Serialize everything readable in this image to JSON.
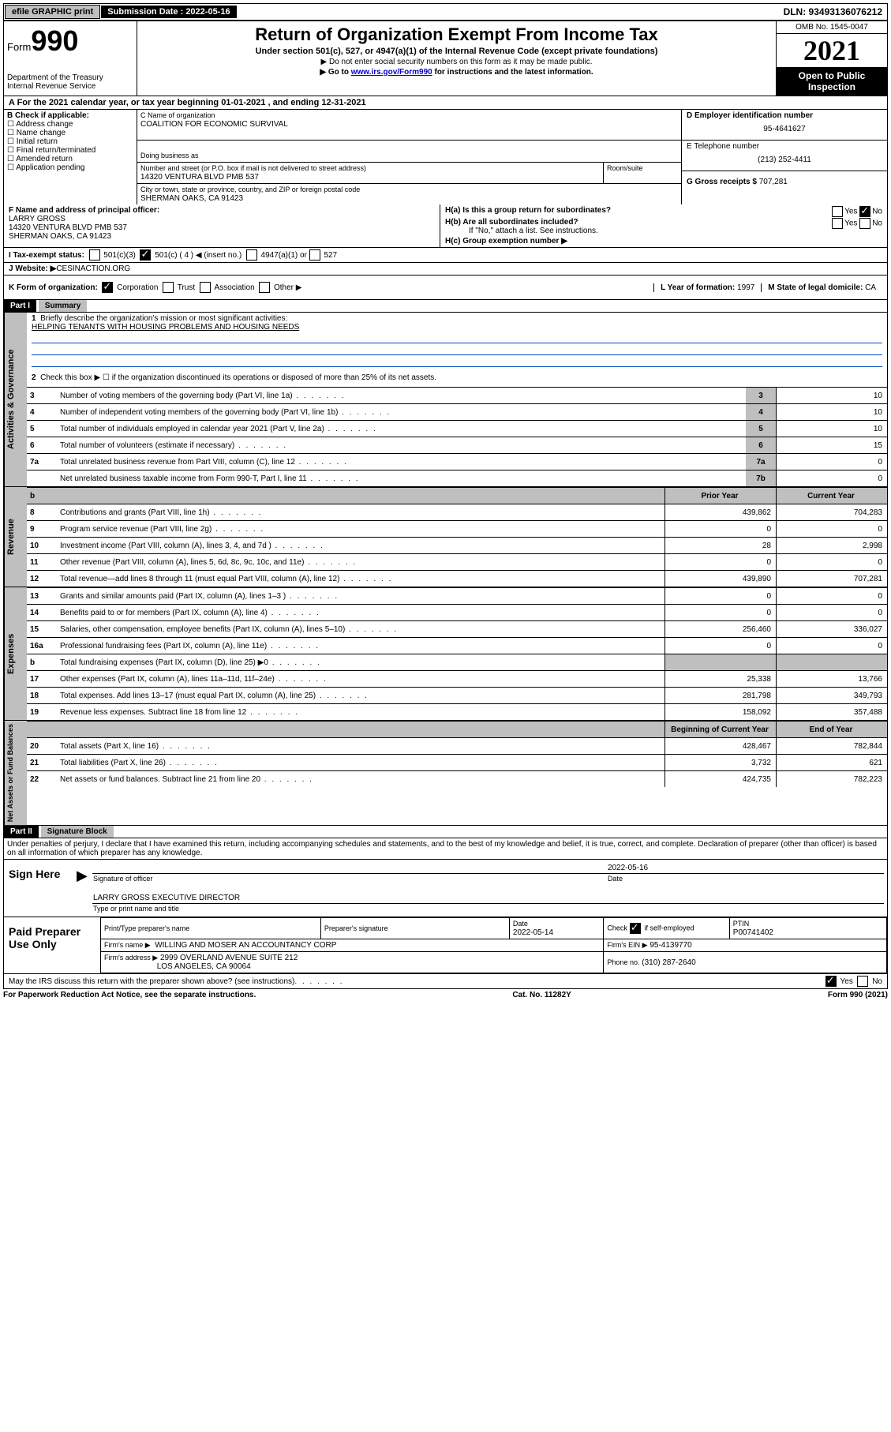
{
  "topBar": {
    "efile": "efile GRAPHIC print",
    "submissionLabel": "Submission Date : 2022-05-16",
    "dln": "DLN: 93493136076212"
  },
  "header": {
    "formPrefix": "Form",
    "formNumber": "990",
    "dept": "Department of the Treasury\nInternal Revenue Service",
    "title": "Return of Organization Exempt From Income Tax",
    "subtitle": "Under section 501(c), 527, or 4947(a)(1) of the Internal Revenue Code (except private foundations)",
    "note1": "▶ Do not enter social security numbers on this form as it may be made public.",
    "note2_pre": "▶ Go to ",
    "note2_link": "www.irs.gov/Form990",
    "note2_post": " for instructions and the latest information.",
    "omb": "OMB No. 1545-0047",
    "year": "2021",
    "openPublic": "Open to Public Inspection"
  },
  "period": {
    "text": "A For the 2021 calendar year, or tax year beginning 01-01-2021   , and ending 12-31-2021"
  },
  "sectionB": {
    "label": "B Check if applicable:",
    "items": [
      "Address change",
      "Name change",
      "Initial return",
      "Final return/terminated",
      "Amended return",
      "Application pending"
    ]
  },
  "sectionC": {
    "nameLabel": "C Name of organization",
    "name": "COALITION FOR ECONOMIC SURVIVAL",
    "dbaLabel": "Doing business as",
    "streetLabel": "Number and street (or P.O. box if mail is not delivered to street address)",
    "suiteLabel": "Room/suite",
    "street": "14320 VENTURA BLVD PMB 537",
    "cityLabel": "City or town, state or province, country, and ZIP or foreign postal code",
    "city": "SHERMAN OAKS, CA  91423"
  },
  "sectionD": {
    "label": "D Employer identification number",
    "ein": "95-4641627"
  },
  "sectionE": {
    "label": "E Telephone number",
    "phone": "(213) 252-4411"
  },
  "sectionG": {
    "label": "G Gross receipts $",
    "amount": "707,281"
  },
  "sectionF": {
    "label": "F Name and address of principal officer:",
    "name": "LARRY GROSS",
    "addr1": "14320 VENTURA BLVD PMB 537",
    "addr2": "SHERMAN OAKS, CA  91423"
  },
  "sectionH": {
    "a": "H(a)  Is this a group return for subordinates?",
    "b": "H(b)  Are all subordinates included?",
    "bNote": "If \"No,\" attach a list. See instructions.",
    "c": "H(c)  Group exemption number ▶",
    "yes": "Yes",
    "no": "No"
  },
  "sectionI": {
    "label": "I   Tax-exempt status:",
    "c3": "501(c)(3)",
    "c4": "501(c) ( 4 ) ◀ (insert no.)",
    "a1": "4947(a)(1) or",
    "s527": "527"
  },
  "sectionJ": {
    "label": "J   Website: ▶ ",
    "value": "CESINACTION.ORG"
  },
  "sectionK": {
    "label": "K Form of organization:",
    "corp": "Corporation",
    "trust": "Trust",
    "assoc": "Association",
    "other": "Other ▶"
  },
  "sectionL": {
    "label": "L Year of formation:",
    "value": "1997"
  },
  "sectionM": {
    "label": "M State of legal domicile:",
    "value": "CA"
  },
  "part1": {
    "header": "Part I",
    "title": "Summary",
    "q1": "Briefly describe the organization's mission or most significant activities:",
    "mission": "HELPING TENANTS WITH HOUSING PROBLEMS AND HOUSING NEEDS",
    "q2": "Check this box ▶ ☐  if the organization discontinued its operations or disposed of more than 25% of its net assets."
  },
  "sideLabels": {
    "gov": "Activities & Governance",
    "rev": "Revenue",
    "exp": "Expenses",
    "net": "Net Assets or Fund Balances"
  },
  "govRows": [
    {
      "n": "3",
      "desc": "Number of voting members of the governing body (Part VI, line 1a)",
      "k": "3",
      "v": "10"
    },
    {
      "n": "4",
      "desc": "Number of independent voting members of the governing body (Part VI, line 1b)",
      "k": "4",
      "v": "10"
    },
    {
      "n": "5",
      "desc": "Total number of individuals employed in calendar year 2021 (Part V, line 2a)",
      "k": "5",
      "v": "10"
    },
    {
      "n": "6",
      "desc": "Total number of volunteers (estimate if necessary)",
      "k": "6",
      "v": "15"
    },
    {
      "n": "7a",
      "desc": "Total unrelated business revenue from Part VIII, column (C), line 12",
      "k": "7a",
      "v": "0"
    },
    {
      "n": "",
      "desc": "Net unrelated business taxable income from Form 990-T, Part I, line 11",
      "k": "7b",
      "v": "0"
    }
  ],
  "hdrB": "b",
  "priorYear": "Prior Year",
  "currentYear": "Current Year",
  "revRows": [
    {
      "n": "8",
      "desc": "Contributions and grants (Part VIII, line 1h)",
      "p": "439,862",
      "c": "704,283"
    },
    {
      "n": "9",
      "desc": "Program service revenue (Part VIII, line 2g)",
      "p": "0",
      "c": "0"
    },
    {
      "n": "10",
      "desc": "Investment income (Part VIII, column (A), lines 3, 4, and 7d )",
      "p": "28",
      "c": "2,998"
    },
    {
      "n": "11",
      "desc": "Other revenue (Part VIII, column (A), lines 5, 6d, 8c, 9c, 10c, and 11e)",
      "p": "0",
      "c": "0"
    },
    {
      "n": "12",
      "desc": "Total revenue—add lines 8 through 11 (must equal Part VIII, column (A), line 12)",
      "p": "439,890",
      "c": "707,281"
    }
  ],
  "expRows": [
    {
      "n": "13",
      "desc": "Grants and similar amounts paid (Part IX, column (A), lines 1–3 )",
      "p": "0",
      "c": "0"
    },
    {
      "n": "14",
      "desc": "Benefits paid to or for members (Part IX, column (A), line 4)",
      "p": "0",
      "c": "0"
    },
    {
      "n": "15",
      "desc": "Salaries, other compensation, employee benefits (Part IX, column (A), lines 5–10)",
      "p": "256,460",
      "c": "336,027"
    },
    {
      "n": "16a",
      "desc": "Professional fundraising fees (Part IX, column (A), line 11e)",
      "p": "0",
      "c": "0"
    },
    {
      "n": "b",
      "desc": "Total fundraising expenses (Part IX, column (D), line 25) ▶0",
      "p": "",
      "c": "",
      "shaded": true
    },
    {
      "n": "17",
      "desc": "Other expenses (Part IX, column (A), lines 11a–11d, 11f–24e)",
      "p": "25,338",
      "c": "13,766"
    },
    {
      "n": "18",
      "desc": "Total expenses. Add lines 13–17 (must equal Part IX, column (A), line 25)",
      "p": "281,798",
      "c": "349,793"
    },
    {
      "n": "19",
      "desc": "Revenue less expenses. Subtract line 18 from line 12",
      "p": "158,092",
      "c": "357,488"
    }
  ],
  "netHdr1": "Beginning of Current Year",
  "netHdr2": "End of Year",
  "netRows": [
    {
      "n": "20",
      "desc": "Total assets (Part X, line 16)",
      "p": "428,467",
      "c": "782,844"
    },
    {
      "n": "21",
      "desc": "Total liabilities (Part X, line 26)",
      "p": "3,732",
      "c": "621"
    },
    {
      "n": "22",
      "desc": "Net assets or fund balances. Subtract line 21 from line 20",
      "p": "424,735",
      "c": "782,223"
    }
  ],
  "part2": {
    "header": "Part II",
    "title": "Signature Block",
    "jurat": "Under penalties of perjury, I declare that I have examined this return, including accompanying schedules and statements, and to the best of my knowledge and belief, it is true, correct, and complete. Declaration of preparer (other than officer) is based on all information of which preparer has any knowledge."
  },
  "sign": {
    "here": "Sign Here",
    "sigOfficer": "Signature of officer",
    "date": "Date",
    "dateVal": "2022-05-16",
    "nameTitle": "LARRY GROSS  EXECUTIVE DIRECTOR",
    "typeName": "Type or print name and title"
  },
  "prep": {
    "label": "Paid Preparer Use Only",
    "printName": "Print/Type preparer's name",
    "prepSig": "Preparer's signature",
    "dateLbl": "Date",
    "dateVal": "2022-05-14",
    "checkIf": "Check",
    "selfEmp": "if self-employed",
    "ptinLbl": "PTIN",
    "ptin": "P00741402",
    "firmName": "Firm's name    ▶",
    "firm": "WILLING AND MOSER AN ACCOUNTANCY CORP",
    "firmEinLbl": "Firm's EIN ▶",
    "firmEin": "95-4139770",
    "firmAddrLbl": "Firm's address ▶",
    "firmAddr1": "2999 OVERLAND AVENUE SUITE 212",
    "firmAddr2": "LOS ANGELES, CA  90064",
    "phoneLbl": "Phone no.",
    "phone": "(310) 287-2640"
  },
  "discuss": {
    "q": "May the IRS discuss this return with the preparer shown above? (see instructions)",
    "yes": "Yes",
    "no": "No"
  },
  "footer": {
    "left": "For Paperwork Reduction Act Notice, see the separate instructions.",
    "mid": "Cat. No. 11282Y",
    "right": "Form 990 (2021)"
  }
}
